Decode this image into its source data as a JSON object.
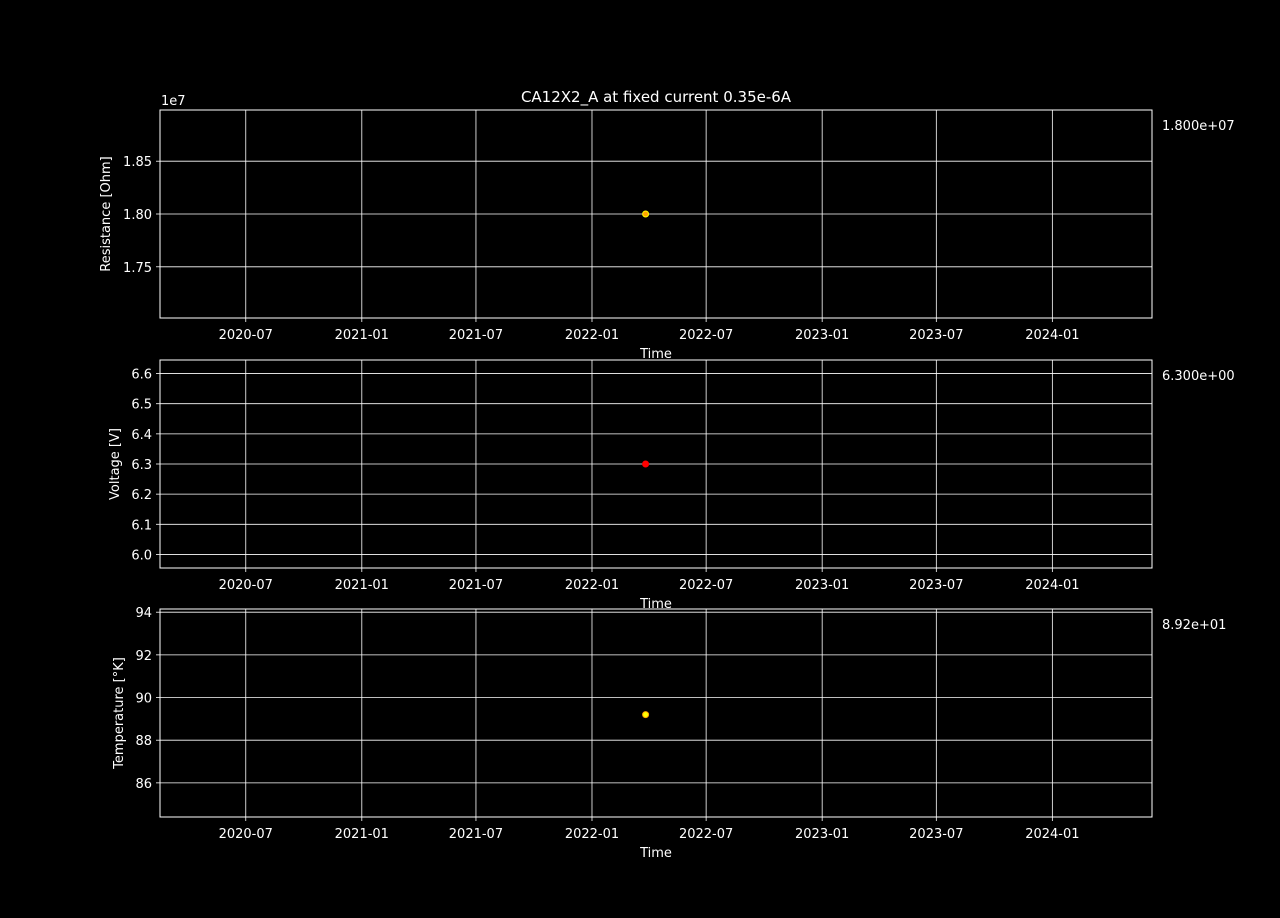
{
  "figure_title": "CA12X2_A at fixed current 0.35e-6A",
  "colors": {
    "background": "#000000",
    "axes": "#ffffff",
    "grid": "#ffffff"
  },
  "chart_data": [
    {
      "type": "scatter",
      "title": "CA12X2_A at fixed current 0.35e-6A",
      "xlabel": "Time",
      "ylabel": "Resistance [Ohm]",
      "offset_label": "1e7",
      "side_value": "1.800e+07",
      "x_ticks": [
        "2020-07",
        "2021-01",
        "2021-07",
        "2022-01",
        "2022-07",
        "2023-01",
        "2023-07",
        "2024-01"
      ],
      "y_ticks": [
        "1.75",
        "1.80",
        "1.85"
      ],
      "xlim": [
        "2020-02-16",
        "2024-06-07"
      ],
      "ylim": [
        17015000.0,
        18985000.0
      ],
      "grid": true,
      "series": [
        {
          "points": [
            {
              "x": "2022-03-27",
              "y": 18000000.0
            }
          ],
          "color": "#ffa500",
          "edge": "#ffff00"
        }
      ]
    },
    {
      "type": "scatter",
      "xlabel": "Time",
      "ylabel": "Voltage [V]",
      "side_value": "6.300e+00",
      "x_ticks": [
        "2020-07",
        "2021-01",
        "2021-07",
        "2022-01",
        "2022-07",
        "2023-01",
        "2023-07",
        "2024-01"
      ],
      "y_ticks": [
        "6.0",
        "6.1",
        "6.2",
        "6.3",
        "6.4",
        "6.5",
        "6.6"
      ],
      "xlim": [
        "2020-02-16",
        "2024-06-07"
      ],
      "ylim": [
        5.955,
        6.645
      ],
      "grid": true,
      "series": [
        {
          "points": [
            {
              "x": "2022-03-27",
              "y": 6.3
            }
          ],
          "color": "#ff0000",
          "edge": "#ff0000"
        }
      ]
    },
    {
      "type": "scatter",
      "xlabel": "Time",
      "ylabel": "Temperature [°K]",
      "side_value": "8.92e+01",
      "x_ticks": [
        "2020-07",
        "2021-01",
        "2021-07",
        "2022-01",
        "2022-07",
        "2023-01",
        "2023-07",
        "2024-01"
      ],
      "y_ticks": [
        "86",
        "88",
        "90",
        "92",
        "94"
      ],
      "xlim": [
        "2020-02-16",
        "2024-06-07"
      ],
      "ylim": [
        84.4,
        94.15
      ],
      "grid": true,
      "series": [
        {
          "points": [
            {
              "x": "2022-03-27",
              "y": 89.2
            }
          ],
          "color": "#ffff00",
          "edge": "#ffa500"
        }
      ]
    }
  ]
}
